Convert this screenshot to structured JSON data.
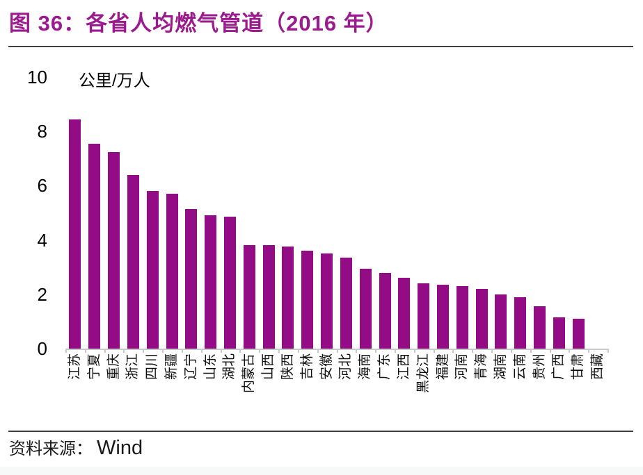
{
  "page": {
    "title": "图 36：各省人均燃气管道（2016 年）",
    "source": {
      "label": "资料来源：",
      "value": "Wind"
    }
  },
  "colors": {
    "title": "#9B1A8E",
    "bar_fill": "#930C86",
    "axis_gray": "#C9C9C9",
    "rule_dark": "#404040"
  },
  "chart_data": {
    "type": "bar",
    "title": "各省人均燃气管道（2016 年）",
    "unit_label": "公里/万人",
    "ylabel": "公里/万人",
    "ylim": [
      0,
      10
    ],
    "yticks": [
      0,
      2,
      4,
      6,
      8,
      10
    ],
    "grid": false,
    "legend_position": "none",
    "x_tick_rotation": -90,
    "categories": [
      "江苏",
      "宁夏",
      "重庆",
      "浙江",
      "四川",
      "新疆",
      "辽宁",
      "山东",
      "湖北",
      "内蒙古",
      "山西",
      "陕西",
      "吉林",
      "安徽",
      "河北",
      "海南",
      "广东",
      "江西",
      "黑龙江",
      "福建",
      "河南",
      "青海",
      "湖南",
      "云南",
      "贵州",
      "广西",
      "甘肃",
      "西藏"
    ],
    "values": [
      8.45,
      7.55,
      7.25,
      6.4,
      5.8,
      5.7,
      5.15,
      4.9,
      4.85,
      3.8,
      3.8,
      3.75,
      3.6,
      3.5,
      3.35,
      2.95,
      2.8,
      2.6,
      2.4,
      2.35,
      2.3,
      2.2,
      2.0,
      1.9,
      1.55,
      1.15,
      1.1,
      0
    ]
  }
}
